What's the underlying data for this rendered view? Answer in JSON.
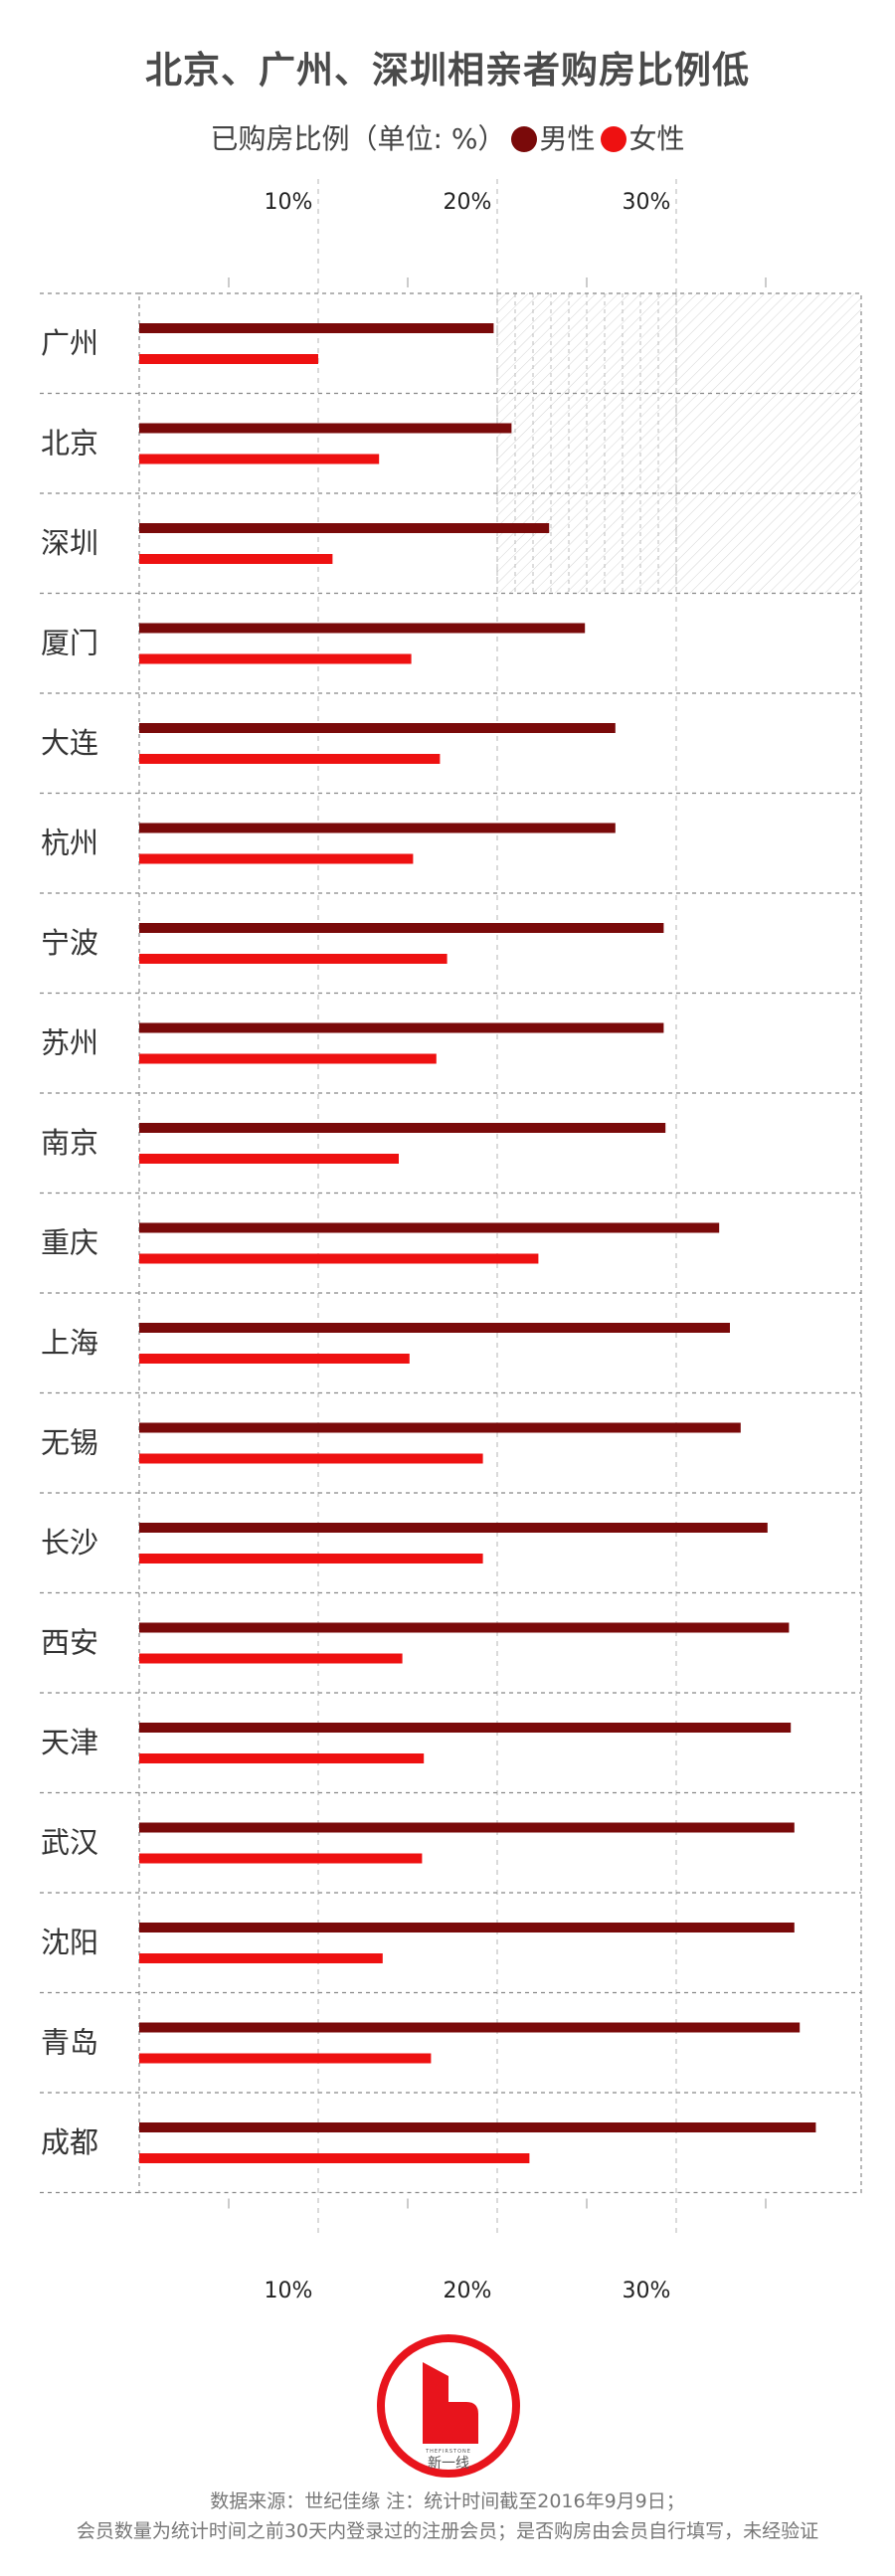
{
  "title": "北京、广州、深圳相亲者购房比例低",
  "subtitle": {
    "text": "已购房比例（单位: %）",
    "legend_male": "男性",
    "legend_female": "女性"
  },
  "colors": {
    "male": "#7a0a0a",
    "female": "#ee1111",
    "logo": "#e8141c"
  },
  "chart_data": {
    "type": "bar",
    "orientation": "horizontal",
    "title": "北京、广州、深圳相亲者购房比例低",
    "ylabel": "已购房比例（单位: %）",
    "categories": [
      "广州",
      "北京",
      "深圳",
      "厦门",
      "大连",
      "杭州",
      "宁波",
      "苏州",
      "南京",
      "重庆",
      "上海",
      "无锡",
      "长沙",
      "西安",
      "天津",
      "武汉",
      "沈阳",
      "青岛",
      "成都"
    ],
    "series": [
      {
        "name": "男性",
        "values": [
          19.8,
          20.8,
          22.9,
          24.9,
          26.6,
          26.6,
          29.3,
          29.3,
          29.4,
          32.4,
          33.0,
          33.6,
          35.1,
          36.3,
          36.4,
          36.6,
          36.6,
          36.9,
          37.8
        ]
      },
      {
        "name": "女性",
        "values": [
          10.0,
          13.4,
          10.8,
          15.2,
          16.8,
          15.3,
          17.2,
          16.6,
          14.5,
          22.3,
          15.1,
          19.2,
          19.2,
          14.7,
          15.9,
          15.8,
          13.6,
          16.3,
          21.8
        ]
      }
    ],
    "xlim": [
      0,
      40
    ],
    "ticks": [
      "10%",
      "20%",
      "30%"
    ],
    "highlighted_categories": [
      "广州",
      "北京",
      "深圳"
    ],
    "grid": true
  },
  "logo": {
    "brand_small": "THEFIRSTONE",
    "brand": "新一线"
  },
  "source": {
    "line1": "数据来源：世纪佳缘   注：统计时间截至2016年9月9日；",
    "line2": "会员数量为统计时间之前30天内登录过的注册会员；是否购房由会员自行填写，未经验证"
  }
}
